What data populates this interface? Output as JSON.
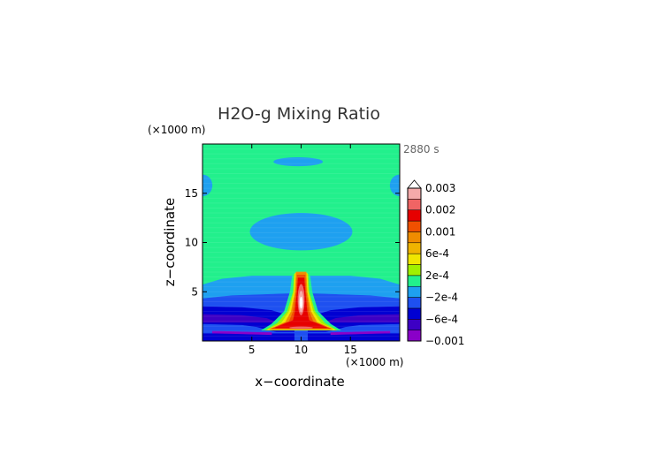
{
  "chart_data": {
    "type": "heatmap",
    "title": "H2O-g Mixing Ratio",
    "time_label": "2880 s",
    "xlabel": "x−coordinate",
    "ylabel": "z−coordinate",
    "x_unit": "(×1000 m)",
    "y_unit": "(×1000 m)",
    "xlim": [
      0,
      20
    ],
    "ylim": [
      0,
      20
    ],
    "x_ticks": [
      {
        "value": 5,
        "label": "5"
      },
      {
        "value": 10,
        "label": "10"
      },
      {
        "value": 15,
        "label": "15"
      }
    ],
    "y_ticks": [
      {
        "value": 5,
        "label": "5"
      },
      {
        "value": 10,
        "label": "10"
      },
      {
        "value": 15,
        "label": "15"
      }
    ],
    "grid": false,
    "colorbar": {
      "extend": "max",
      "labels": [
        {
          "value": 0.003,
          "label": "0.003"
        },
        {
          "value": 0.002,
          "label": "0.002"
        },
        {
          "value": 0.001,
          "label": "0.001"
        },
        {
          "value": 0.0006,
          "label": "6e-4"
        },
        {
          "value": 0.0002,
          "label": "2e-4"
        },
        {
          "value": -0.0002,
          "label": "−2e-4"
        },
        {
          "value": -0.0006,
          "label": "−6e-4"
        },
        {
          "value": -0.001,
          "label": "−0.001"
        }
      ],
      "levels": [
        {
          "from": -0.001,
          "to": -0.0008,
          "color": "#8a00c8"
        },
        {
          "from": -0.0008,
          "to": -0.0006,
          "color": "#3d00c4"
        },
        {
          "from": -0.0006,
          "to": -0.0004,
          "color": "#0000d2"
        },
        {
          "from": -0.0004,
          "to": -0.0002,
          "color": "#1e50f0"
        },
        {
          "from": -0.0002,
          "to": 0.0,
          "color": "#1ea0f0"
        },
        {
          "from": 0.0,
          "to": 0.0002,
          "color": "#22f08c"
        },
        {
          "from": 0.0002,
          "to": 0.0004,
          "color": "#a0f000"
        },
        {
          "from": 0.0004,
          "to": 0.0006,
          "color": "#f0e600"
        },
        {
          "from": 0.0006,
          "to": 0.0008,
          "color": "#f0b400"
        },
        {
          "from": 0.0008,
          "to": 0.001,
          "color": "#f08c00"
        },
        {
          "from": 0.001,
          "to": 0.0015,
          "color": "#f05000"
        },
        {
          "from": 0.0015,
          "to": 0.002,
          "color": "#e60000"
        },
        {
          "from": 0.002,
          "to": 0.0025,
          "color": "#f06464"
        },
        {
          "from": 0.0025,
          "to": 0.003,
          "color": "#f5aaaa"
        },
        {
          "from": 0.003,
          "to": 0.0035,
          "color": "#ffffff"
        }
      ]
    },
    "features": [
      {
        "kind": "background",
        "value": 0.0001,
        "description_free": true
      },
      {
        "kind": "ellipse",
        "cx": 10,
        "cy": 11.1,
        "rx": 5.2,
        "ry": 1.9,
        "value": -0.0001
      },
      {
        "kind": "ellipse",
        "cx": 9.7,
        "cy": 18.2,
        "rx": 2.5,
        "ry": 0.45,
        "value": -0.0001
      },
      {
        "kind": "ellipse",
        "cx": 0,
        "cy": 15.8,
        "rx": 1.0,
        "ry": 1.1,
        "value": -0.0001
      },
      {
        "kind": "ellipse",
        "cx": 20,
        "cy": 15.8,
        "rx": 1.0,
        "ry": 1.1,
        "value": -0.0001
      },
      {
        "kind": "polygon",
        "value": -0.0001,
        "points": [
          [
            0,
            5.7
          ],
          [
            2,
            6.3
          ],
          [
            5,
            6.6
          ],
          [
            8,
            6.6
          ],
          [
            10,
            6.6
          ],
          [
            12,
            6.6
          ],
          [
            15,
            6.6
          ],
          [
            18,
            6.3
          ],
          [
            20,
            5.7
          ],
          [
            20,
            0
          ],
          [
            0,
            0
          ]
        ]
      },
      {
        "kind": "polygon",
        "value": -0.0003,
        "points": [
          [
            0,
            4.3
          ],
          [
            3,
            4.6
          ],
          [
            6,
            4.7
          ],
          [
            8.5,
            4.8
          ],
          [
            10,
            4.8
          ],
          [
            11.5,
            4.8
          ],
          [
            14,
            4.7
          ],
          [
            17,
            4.6
          ],
          [
            20,
            4.3
          ],
          [
            20,
            0
          ],
          [
            0,
            0
          ]
        ]
      },
      {
        "kind": "polygon",
        "value": -0.0005,
        "points": [
          [
            0,
            3.5
          ],
          [
            4,
            3.4
          ],
          [
            7,
            3.1
          ],
          [
            8.6,
            2.6
          ],
          [
            9.3,
            1.9
          ],
          [
            9.3,
            0
          ],
          [
            0,
            0
          ]
        ]
      },
      {
        "kind": "polygon",
        "value": -0.0005,
        "points": [
          [
            20,
            3.5
          ],
          [
            16,
            3.4
          ],
          [
            13,
            3.1
          ],
          [
            11.4,
            2.6
          ],
          [
            10.7,
            1.9
          ],
          [
            10.7,
            0
          ],
          [
            20,
            0
          ]
        ]
      },
      {
        "kind": "polygon",
        "value": -0.0007,
        "points": [
          [
            0,
            2.7
          ],
          [
            4,
            2.6
          ],
          [
            6.5,
            2.3
          ],
          [
            7.5,
            1.9
          ],
          [
            0,
            1.9
          ]
        ]
      },
      {
        "kind": "polygon",
        "value": -0.0007,
        "points": [
          [
            20,
            2.7
          ],
          [
            16,
            2.6
          ],
          [
            13.5,
            2.3
          ],
          [
            12.5,
            1.9
          ],
          [
            20,
            1.9
          ]
        ]
      },
      {
        "kind": "polygon",
        "value": -0.0003,
        "points": [
          [
            0,
            1.7
          ],
          [
            4,
            1.6
          ],
          [
            5.5,
            1.4
          ],
          [
            6.5,
            1.1
          ],
          [
            7.5,
            0.9
          ],
          [
            12.5,
            0.9
          ],
          [
            13.5,
            1.1
          ],
          [
            14.5,
            1.4
          ],
          [
            16,
            1.6
          ],
          [
            20,
            1.7
          ],
          [
            20,
            0.8
          ],
          [
            0,
            0.8
          ]
        ]
      },
      {
        "kind": "polygon",
        "value": -0.0009,
        "points": [
          [
            1,
            1.0
          ],
          [
            3,
            0.95
          ],
          [
            5,
            0.9
          ],
          [
            7,
            0.85
          ],
          [
            7,
            0.65
          ],
          [
            5,
            0.7
          ],
          [
            3,
            0.75
          ],
          [
            1,
            0.8
          ]
        ]
      },
      {
        "kind": "polygon",
        "value": -0.0009,
        "points": [
          [
            19,
            1.0
          ],
          [
            17,
            0.95
          ],
          [
            15,
            0.9
          ],
          [
            13,
            0.85
          ],
          [
            13,
            0.65
          ],
          [
            15,
            0.7
          ],
          [
            17,
            0.75
          ],
          [
            19,
            0.8
          ]
        ]
      },
      {
        "kind": "polygon",
        "value": 0.0001,
        "points": [
          [
            9.1,
            6.6
          ],
          [
            8.9,
            5
          ],
          [
            8.3,
            3
          ],
          [
            7.0,
            1.7
          ],
          [
            6.0,
            1.1
          ],
          [
            14.0,
            1.1
          ],
          [
            13.0,
            1.7
          ],
          [
            11.7,
            3
          ],
          [
            11.1,
            5
          ],
          [
            10.9,
            6.6
          ]
        ]
      },
      {
        "kind": "polygon",
        "value": 0.0003,
        "points": [
          [
            9.3,
            6.8
          ],
          [
            9.2,
            5
          ],
          [
            8.6,
            3
          ],
          [
            7.6,
            1.8
          ],
          [
            6.4,
            1.1
          ],
          [
            13.6,
            1.1
          ],
          [
            12.4,
            1.8
          ],
          [
            11.4,
            3
          ],
          [
            10.8,
            5
          ],
          [
            10.7,
            6.8
          ]
        ]
      },
      {
        "kind": "polygon",
        "value": 0.0005,
        "points": [
          [
            9.4,
            6.9
          ],
          [
            9.3,
            5
          ],
          [
            8.8,
            3
          ],
          [
            8.0,
            1.8
          ],
          [
            6.6,
            1.15
          ],
          [
            13.4,
            1.15
          ],
          [
            12.0,
            1.8
          ],
          [
            11.2,
            3
          ],
          [
            10.7,
            5
          ],
          [
            10.6,
            6.9
          ]
        ]
      },
      {
        "kind": "polygon",
        "value": 0.0009,
        "points": [
          [
            9.5,
            7.0
          ],
          [
            9.4,
            5
          ],
          [
            9.0,
            3
          ],
          [
            8.4,
            1.9
          ],
          [
            6.8,
            1.2
          ],
          [
            13.2,
            1.2
          ],
          [
            11.6,
            1.9
          ],
          [
            11.0,
            3
          ],
          [
            10.6,
            5
          ],
          [
            10.5,
            7.0
          ]
        ]
      },
      {
        "kind": "polygon",
        "value": 0.0012,
        "points": [
          [
            9.6,
            6.7
          ],
          [
            9.5,
            5
          ],
          [
            9.2,
            3
          ],
          [
            8.8,
            2.0
          ],
          [
            7.0,
            1.25
          ],
          [
            13.0,
            1.25
          ],
          [
            11.2,
            2.0
          ],
          [
            10.8,
            3
          ],
          [
            10.5,
            5
          ],
          [
            10.4,
            6.7
          ]
        ]
      },
      {
        "kind": "polygon",
        "value": 0.0017,
        "points": [
          [
            9.7,
            6.4
          ],
          [
            9.6,
            5
          ],
          [
            9.4,
            3
          ],
          [
            9.2,
            2.1
          ],
          [
            7.4,
            1.35
          ],
          [
            12.6,
            1.35
          ],
          [
            10.8,
            2.1
          ],
          [
            10.6,
            3
          ],
          [
            10.4,
            5
          ],
          [
            10.3,
            6.4
          ]
        ]
      },
      {
        "kind": "ellipse",
        "cx": 10,
        "cy": 4.2,
        "rx": 0.35,
        "ry": 1.6,
        "value": 0.0022
      },
      {
        "kind": "ellipse",
        "cx": 10,
        "cy": 4.0,
        "rx": 0.25,
        "ry": 1.1,
        "value": 0.0027
      },
      {
        "kind": "ellipse",
        "cx": 10,
        "cy": 3.9,
        "rx": 0.15,
        "ry": 0.6,
        "value": 0.0031
      },
      {
        "kind": "ellipse",
        "cx": 10,
        "cy": 1.35,
        "rx": 1.2,
        "ry": 0.12,
        "value": 0.0022
      }
    ]
  }
}
